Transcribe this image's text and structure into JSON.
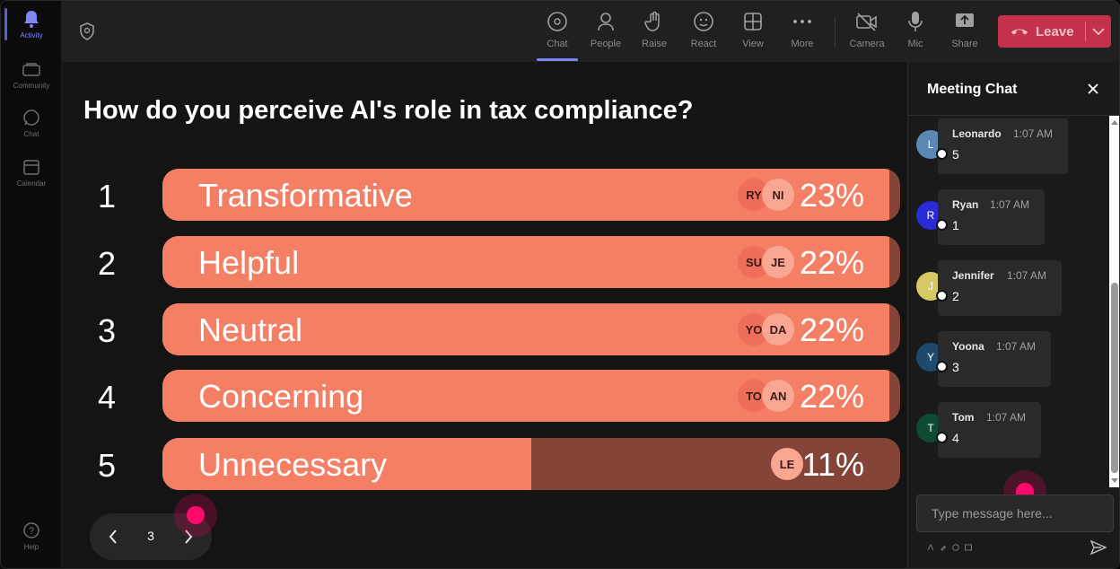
{
  "rail": {
    "items": [
      {
        "label": "Activity",
        "icon": "bell-icon",
        "active": true
      },
      {
        "label": "Community",
        "icon": "community-icon",
        "active": false
      },
      {
        "label": "Chat",
        "icon": "chat-icon",
        "active": false
      },
      {
        "label": "Calendar",
        "icon": "calendar-icon",
        "active": false
      }
    ],
    "help": {
      "label": "Help",
      "icon": "help-icon"
    }
  },
  "toolbar": {
    "chat": "Chat",
    "people": "People",
    "raise": "Raise",
    "react": "React",
    "view": "View",
    "more": "More",
    "camera": "Camera",
    "mic": "Mic",
    "share": "Share",
    "leave": "Leave",
    "active_tab": "Chat"
  },
  "colors": {
    "accent": "#7f85f5",
    "leave": "#c4314b",
    "bar_fill": "#f47f64",
    "bar_track": "#844538",
    "cursor": "#ff0a6c"
  },
  "poll": {
    "question": "How do you perceive AI's role in tax compliance?",
    "options": [
      {
        "num": "1",
        "label": "Transformative",
        "percent": "23%",
        "fill": 0.985,
        "avatars": [
          "RY",
          "NI"
        ]
      },
      {
        "num": "2",
        "label": "Helpful",
        "percent": "22%",
        "fill": 0.985,
        "avatars": [
          "SU",
          "JE"
        ]
      },
      {
        "num": "3",
        "label": "Neutral",
        "percent": "22%",
        "fill": 0.985,
        "avatars": [
          "YO",
          "DA"
        ]
      },
      {
        "num": "4",
        "label": "Concerning",
        "percent": "22%",
        "fill": 0.985,
        "avatars": [
          "TO",
          "AN"
        ]
      },
      {
        "num": "5",
        "label": "Unnecessary",
        "percent": "11%",
        "fill": 0.5,
        "avatars": [
          "LE"
        ]
      }
    ]
  },
  "pager": {
    "page": "3"
  },
  "chat": {
    "title": "Meeting Chat",
    "placeholder": "Type message here...",
    "messages": [
      {
        "initial": "L",
        "name": "Leonardo",
        "time": "1:07 AM",
        "text": "5",
        "avatar_color": "#5b87b3"
      },
      {
        "initial": "R",
        "name": "Ryan",
        "time": "1:07 AM",
        "text": "1",
        "avatar_color": "#2b2bd6"
      },
      {
        "initial": "J",
        "name": "Jennifer",
        "time": "1:07 AM",
        "text": "2",
        "avatar_color": "#d6c865"
      },
      {
        "initial": "Y",
        "name": "Yoona",
        "time": "1:07 AM",
        "text": "3",
        "avatar_color": "#1e4a6e"
      },
      {
        "initial": "T",
        "name": "Tom",
        "time": "1:07 AM",
        "text": "4",
        "avatar_color": "#0f4a32"
      }
    ]
  }
}
